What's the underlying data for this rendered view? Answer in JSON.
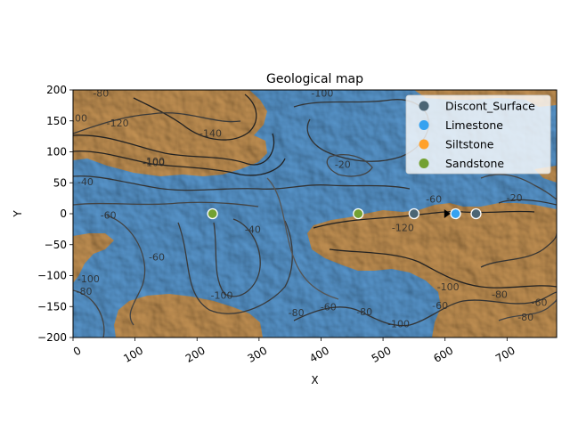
{
  "chart_data": {
    "type": "scatter",
    "title": "Geological map",
    "xlabel": "X",
    "ylabel": "Y",
    "xlim": [
      0,
      780
    ],
    "ylim": [
      -200,
      200
    ],
    "x_ticks": [
      0,
      100,
      200,
      300,
      400,
      500,
      600,
      700
    ],
    "y_ticks": [
      200,
      150,
      100,
      50,
      0,
      -50,
      -100,
      -150,
      -200
    ],
    "x_tick_labels": [
      "0",
      "100",
      "200",
      "300",
      "400",
      "500",
      "600",
      "700"
    ],
    "y_tick_labels": [
      "200",
      "150",
      "100",
      "50",
      "0",
      "−50",
      "−100",
      "−150",
      "−200"
    ],
    "legend_position": "top-right",
    "series": [
      {
        "name": "Discont_Surface",
        "color": "#4c6574",
        "points": [
          [
            550,
            0
          ],
          [
            650,
            0
          ]
        ]
      },
      {
        "name": "Limestone",
        "color": "#36a2f0",
        "points": [
          [
            617,
            0
          ]
        ]
      },
      {
        "name": "Siltstone",
        "color": "#ffa12b",
        "points": []
      },
      {
        "name": "Sandstone",
        "color": "#73a132",
        "points": [
          [
            225,
            0
          ],
          [
            460,
            0
          ]
        ]
      }
    ],
    "orientation_markers": [
      [
        603,
        0
      ]
    ],
    "contour_labels": [
      {
        "text": "-80",
        "x": 45,
        "y": 195
      },
      {
        "text": "-100",
        "x": 5,
        "y": 155
      },
      {
        "text": "-120",
        "x": 72,
        "y": 147
      },
      {
        "text": "-140",
        "x": 222,
        "y": 130
      },
      {
        "text": "-100",
        "x": 130,
        "y": 83
      },
      {
        "text": "-40",
        "x": 20,
        "y": 52
      },
      {
        "text": "-60",
        "x": 57,
        "y": -2
      },
      {
        "text": "-60",
        "x": 135,
        "y": -70
      },
      {
        "text": "-100",
        "x": 25,
        "y": -105
      },
      {
        "text": "-80",
        "x": 18,
        "y": -125
      },
      {
        "text": "-40",
        "x": 290,
        "y": -25
      },
      {
        "text": "-100",
        "x": 240,
        "y": -132
      },
      {
        "text": "-80",
        "x": 360,
        "y": -160
      },
      {
        "text": "-60",
        "x": 412,
        "y": -150
      },
      {
        "text": "-80",
        "x": 470,
        "y": -158
      },
      {
        "text": "-100",
        "x": 525,
        "y": -178
      },
      {
        "text": "-60",
        "x": 592,
        "y": -148
      },
      {
        "text": "-100",
        "x": 605,
        "y": -118
      },
      {
        "text": "-80",
        "x": 688,
        "y": -130
      },
      {
        "text": "-80",
        "x": 730,
        "y": -167
      },
      {
        "text": "-60",
        "x": 752,
        "y": -143
      },
      {
        "text": "-120",
        "x": 532,
        "y": -22
      },
      {
        "text": "-60",
        "x": 582,
        "y": 24
      },
      {
        "text": "-20",
        "x": 712,
        "y": 26
      },
      {
        "text": "-20",
        "x": 435,
        "y": 80
      },
      {
        "text": "-100",
        "x": 402,
        "y": 195
      },
      {
        "text": "-100",
        "x": 130,
        "y": 85
      }
    ]
  }
}
